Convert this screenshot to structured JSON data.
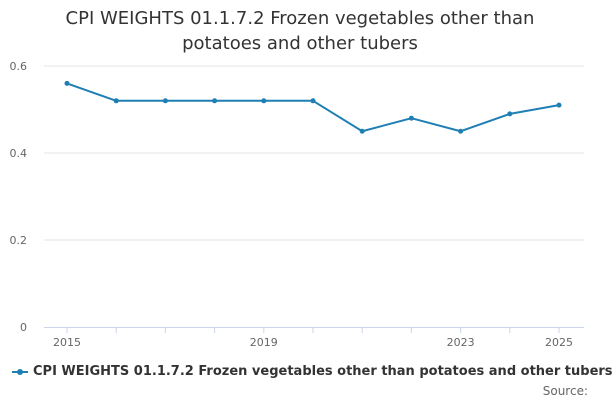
{
  "title": "CPI WEIGHTS 01.1.7.2 Frozen vegetables other than potatoes and other tubers",
  "source_label": "Source:",
  "colors": {
    "series": "#1f7fb4",
    "grid": "#e6e6e6",
    "axis": "#ccd6eb",
    "text": "#333333",
    "tick": "#666666"
  },
  "chart_data": {
    "type": "line",
    "title": "CPI WEIGHTS 01.1.7.2 Frozen vegetables other than potatoes and other tubers",
    "x": [
      2015,
      2016,
      2017,
      2018,
      2019,
      2020,
      2021,
      2022,
      2023,
      2024,
      2025
    ],
    "x_tick_labels": [
      "2015",
      "2019",
      "2023",
      "2025"
    ],
    "x_tick_values": [
      2015,
      2019,
      2023,
      2025
    ],
    "xlim": [
      2015,
      2025
    ],
    "ylim": [
      0,
      0.6
    ],
    "y_ticks": [
      0,
      0.2,
      0.4,
      0.6
    ],
    "y_tick_labels": [
      "0",
      "0.2",
      "0.4",
      "0.6"
    ],
    "grid": true,
    "legend_position": "bottom-left",
    "series": [
      {
        "name": "CPI WEIGHTS 01.1.7.2 Frozen vegetables other than potatoes and other tubers",
        "values": [
          0.56,
          0.52,
          0.52,
          0.52,
          0.52,
          0.52,
          0.45,
          0.48,
          0.45,
          0.49,
          0.51
        ]
      }
    ]
  }
}
